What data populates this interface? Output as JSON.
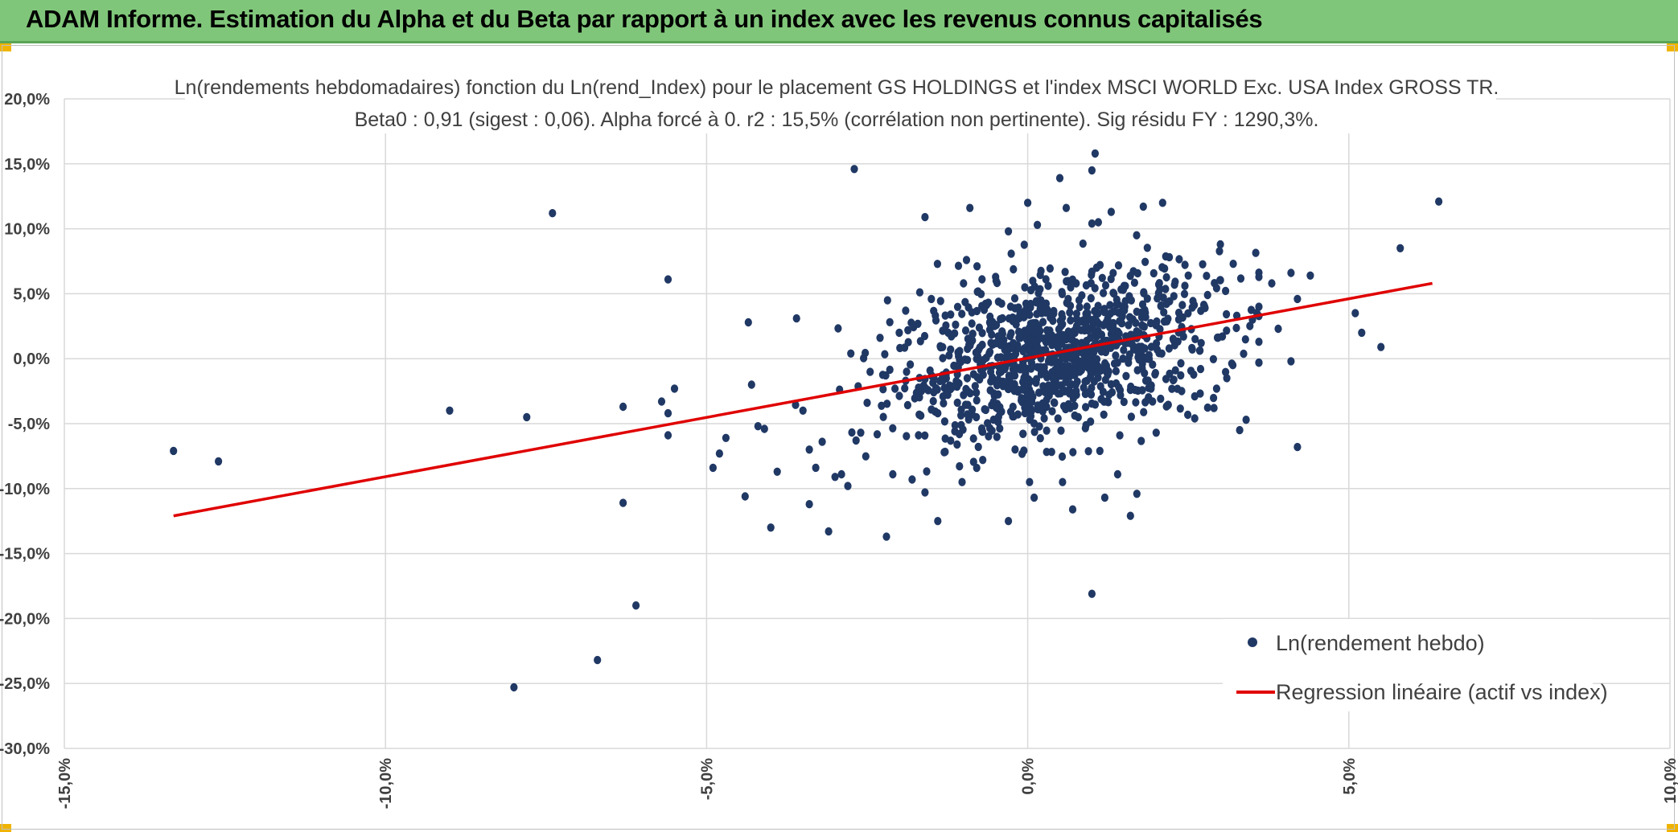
{
  "header": {
    "title": "ADAM Informe. Estimation du Alpha et du Beta par rapport à un index avec les revenus connus capitalisés"
  },
  "colors": {
    "banner": "#80c67a",
    "points": "#203864",
    "regression": "#e00000",
    "grid": "#d9d9d9",
    "corner_marks": "#f0b400"
  },
  "chart_data": {
    "type": "scatter",
    "title": "Ln(rendements hebdomadaires) fonction du Ln(rend_Index) pour le placement GS HOLDINGS et l'index MSCI WORLD Exc. USA Index GROSS TR.",
    "subtitle": "Beta0 : 0,91 (sigest : 0,06). Alpha forcé à 0. r2 : 15,5% (corrélation non pertinente). Sig résidu FY : 1290,3%.",
    "xlabel": "",
    "ylabel": "",
    "xlim": [
      -15,
      10
    ],
    "ylim": [
      -30,
      20
    ],
    "x_ticks": [
      -15,
      -10,
      -5,
      0,
      5,
      10
    ],
    "y_ticks": [
      20,
      15,
      10,
      5,
      0,
      -5,
      -10,
      -15,
      -20,
      -25,
      -30
    ],
    "x_tick_labels": [
      "-15,0%",
      "-10,0%",
      "-5,0%",
      "0,0%",
      "5,0%",
      "10,0%"
    ],
    "y_tick_labels": [
      "20,0%",
      "15,0%",
      "10,0%",
      "5,0%",
      "0,0%",
      "-5,0%",
      "-10,0%",
      "-15,0%",
      "-20,0%",
      "-25,0%",
      "-30,0%"
    ],
    "grid": true,
    "legend_position": "bottom-right",
    "series": [
      {
        "name": "Ln(rendement hebdo)",
        "type": "scatter",
        "color": "#203864",
        "points": [
          [
            -13.3,
            -7.1
          ],
          [
            -12.6,
            -7.9
          ],
          [
            -9.0,
            -4.0
          ],
          [
            -7.8,
            -4.5
          ],
          [
            -7.4,
            11.2
          ],
          [
            -8.0,
            -25.3
          ],
          [
            -6.7,
            -23.2
          ],
          [
            -6.3,
            -11.1
          ],
          [
            -6.3,
            -3.7
          ],
          [
            -6.1,
            -19.0
          ],
          [
            -5.6,
            6.1
          ],
          [
            -5.6,
            -4.2
          ],
          [
            -5.6,
            -5.9
          ],
          [
            -5.7,
            -3.3
          ],
          [
            -5.5,
            -2.3
          ],
          [
            -4.9,
            -8.4
          ],
          [
            -4.8,
            -7.3
          ],
          [
            -4.7,
            -6.1
          ],
          [
            -4.4,
            -10.6
          ],
          [
            -4.35,
            2.8
          ],
          [
            -4.3,
            -2.0
          ],
          [
            -4.2,
            -5.2
          ],
          [
            -4.1,
            -5.4
          ],
          [
            -4.0,
            -13.0
          ],
          [
            -3.9,
            -8.7
          ],
          [
            -3.6,
            3.1
          ],
          [
            -3.5,
            -4.0
          ],
          [
            -3.4,
            -11.2
          ],
          [
            -3.4,
            -7.0
          ],
          [
            -3.3,
            -8.4
          ],
          [
            -3.2,
            -6.4
          ],
          [
            -3.1,
            -13.3
          ],
          [
            -3.0,
            -9.1
          ],
          [
            -2.9,
            -8.9
          ],
          [
            -2.8,
            -9.8
          ],
          [
            -2.7,
            14.6
          ],
          [
            -2.6,
            -5.7
          ],
          [
            -2.5,
            -3.4
          ],
          [
            -2.3,
            1.6
          ],
          [
            -2.2,
            -13.7
          ],
          [
            -2.1,
            -8.9
          ],
          [
            -1.9,
            3.7
          ],
          [
            -1.8,
            -9.3
          ],
          [
            -1.7,
            -5.9
          ],
          [
            -1.6,
            10.9
          ],
          [
            -1.6,
            -10.3
          ],
          [
            -1.4,
            -12.5
          ],
          [
            -1.3,
            -7.2
          ],
          [
            -1.1,
            -6.6
          ],
          [
            -0.9,
            11.6
          ],
          [
            -0.7,
            -7.8
          ],
          [
            -0.3,
            9.8
          ],
          [
            -0.3,
            -12.5
          ],
          [
            0.0,
            12.0
          ],
          [
            0.1,
            -10.7
          ],
          [
            0.15,
            10.3
          ],
          [
            0.5,
            13.9
          ],
          [
            0.6,
            11.6
          ],
          [
            0.7,
            -11.6
          ],
          [
            1.0,
            10.4
          ],
          [
            1.0,
            14.5
          ],
          [
            1.05,
            15.8
          ],
          [
            1.1,
            10.5
          ],
          [
            1.2,
            -10.7
          ],
          [
            1.0,
            -18.1
          ],
          [
            1.3,
            11.3
          ],
          [
            1.4,
            -8.9
          ],
          [
            1.6,
            -12.1
          ],
          [
            1.7,
            -10.4
          ],
          [
            1.8,
            11.7
          ],
          [
            2.0,
            -5.7
          ],
          [
            2.1,
            12.0
          ],
          [
            2.6,
            -4.6
          ],
          [
            2.9,
            -3.8
          ],
          [
            3.0,
            8.8
          ],
          [
            3.3,
            -5.5
          ],
          [
            3.4,
            -4.7
          ],
          [
            3.6,
            1.3
          ],
          [
            3.8,
            5.8
          ],
          [
            4.1,
            6.6
          ],
          [
            4.2,
            4.6
          ],
          [
            4.2,
            -6.8
          ],
          [
            4.1,
            -0.2
          ],
          [
            4.4,
            6.4
          ],
          [
            5.1,
            3.5
          ],
          [
            5.2,
            2.0
          ],
          [
            5.5,
            0.9
          ],
          [
            5.8,
            8.5
          ],
          [
            6.4,
            12.1
          ],
          [
            3.2,
            7.3
          ],
          [
            2.5,
            6.4
          ],
          [
            2.8,
            4.9
          ],
          [
            3.5,
            3.0
          ],
          [
            3.9,
            2.3
          ],
          [
            3.1,
            -1.5
          ],
          [
            2.6,
            -2.9
          ],
          [
            -0.5,
            6.3
          ],
          [
            -1.0,
            5.8
          ],
          [
            -1.5,
            4.6
          ],
          [
            -2.0,
            2.0
          ],
          [
            -1.2,
            3.4
          ],
          [
            -0.8,
            -4.5
          ],
          [
            -1.4,
            -4.2
          ],
          [
            -1.9,
            -1.7
          ],
          [
            -1.0,
            -2.8
          ],
          [
            -0.6,
            0.4
          ],
          [
            -0.2,
            -1.3
          ],
          [
            0.2,
            1.6
          ],
          [
            0.4,
            -2.2
          ],
          [
            0.7,
            0.8
          ],
          [
            0.9,
            -0.5
          ],
          [
            1.3,
            1.9
          ],
          [
            1.6,
            -2.4
          ],
          [
            2.0,
            2.6
          ],
          [
            2.3,
            -0.9
          ],
          [
            2.7,
            1.2
          ],
          [
            -0.4,
            2.1
          ],
          [
            0.3,
            3.8
          ],
          [
            0.8,
            4.5
          ],
          [
            1.5,
            5.6
          ]
        ],
        "generated_cluster": {
          "center_x": 0.45,
          "center_y": 0.3,
          "std_x": 1.25,
          "std_y": 3.0,
          "count": 1050
        }
      },
      {
        "name": "Regression linéaire (actif vs index)",
        "type": "line",
        "color": "#e00000",
        "x": [
          -13.3,
          6.3
        ],
        "y": [
          -12.1,
          5.8
        ]
      }
    ]
  }
}
